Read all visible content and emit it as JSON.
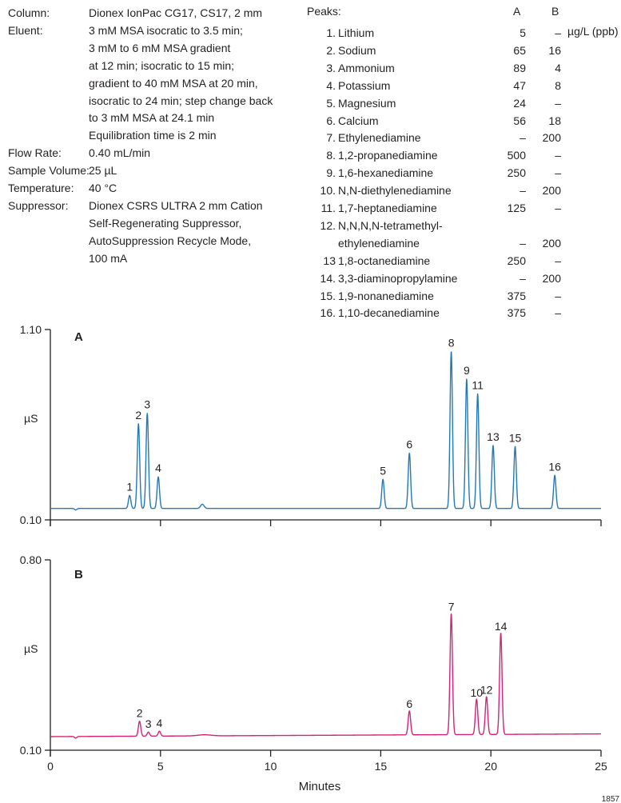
{
  "conditions": [
    {
      "label": "Column:",
      "lines": [
        "Dionex IonPac CG17, CS17, 2 mm"
      ]
    },
    {
      "label": "Eluent:",
      "lines": [
        "3 mM MSA isocratic to 3.5 min;",
        "3 mM to 6 mM MSA gradient",
        "at 12 min; isocratic to 15 min;",
        "gradient to 40 mM MSA at 20 min,",
        "isocratic to 24 min; step change back",
        "to 3 mM MSA at 24.1 min",
        "Equilibration time is 2 min"
      ]
    },
    {
      "label": "Flow Rate:",
      "lines": [
        "0.40 mL/min"
      ]
    },
    {
      "label": "Sample Volume:",
      "lines": [
        "25 µL"
      ]
    },
    {
      "label": "Temperature:",
      "lines": [
        "40 °C"
      ]
    },
    {
      "label": "Suppressor:",
      "lines": [
        "Dionex CSRS ULTRA 2 mm Cation",
        "Self-Regenerating Suppressor,",
        "AutoSuppression Recycle Mode,",
        "100 mA"
      ]
    }
  ],
  "peaks_table": {
    "heading": "Peaks:",
    "col_a": "A",
    "col_b": "B",
    "unit": "µg/L (ppb)",
    "rows": [
      {
        "num": "1.",
        "name": "Lithium",
        "a": "5",
        "b": "–"
      },
      {
        "num": "2.",
        "name": "Sodium",
        "a": "65",
        "b": "16"
      },
      {
        "num": "3.",
        "name": "Ammonium",
        "a": "89",
        "b": "4"
      },
      {
        "num": "4.",
        "name": "Potassium",
        "a": "47",
        "b": "8"
      },
      {
        "num": "5.",
        "name": "Magnesium",
        "a": "24",
        "b": "–"
      },
      {
        "num": "6.",
        "name": "Calcium",
        "a": "56",
        "b": "18"
      },
      {
        "num": "7.",
        "name": "Ethylenediamine",
        "a": "–",
        "b": "200"
      },
      {
        "num": "8.",
        "name": "1,2-propanediamine",
        "a": "500",
        "b": "–"
      },
      {
        "num": "9.",
        "name": "1,6-hexanediamine",
        "a": "250",
        "b": "–"
      },
      {
        "num": "10.",
        "name": "N,N-diethylenediamine",
        "a": "–",
        "b": "200"
      },
      {
        "num": "11.",
        "name": "1,7-heptanediamine",
        "a": "125",
        "b": "–"
      },
      {
        "num": "12.",
        "name": "N,N,N,N-tetramethyl-",
        "a": "",
        "b": ""
      },
      {
        "num": "",
        "name": "ethylenediamine",
        "a": "–",
        "b": "200"
      },
      {
        "num": "13",
        "name": "1,8-octanediamine",
        "a": "250",
        "b": "–"
      },
      {
        "num": "14.",
        "name": "3,3-diaminopropylamine",
        "a": "–",
        "b": "200"
      },
      {
        "num": "15.",
        "name": "1,9-nonanediamine",
        "a": "375",
        "b": "–"
      },
      {
        "num": "16.",
        "name": "1,10-decanediamine",
        "a": "375",
        "b": "–"
      }
    ]
  },
  "figure_id": "1857",
  "chart_data": [
    {
      "type": "line",
      "panel_label": "A",
      "ylabel": "µS",
      "ylim": [
        0.1,
        1.1
      ],
      "xlim": [
        0,
        25
      ],
      "xticks": [
        0,
        5,
        10,
        15,
        20,
        25
      ],
      "color": "#2379b5",
      "baseline": 0.16,
      "dips": [
        {
          "x": 1.15,
          "h": -0.008,
          "w": 0.05
        }
      ],
      "bumps": [
        {
          "x": 6.9,
          "h": 0.022,
          "w": 0.08
        }
      ],
      "peaks": [
        {
          "label": "1",
          "x": 3.6,
          "y": 0.228
        },
        {
          "label": "2",
          "x": 4.0,
          "y": 0.605
        },
        {
          "label": "3",
          "x": 4.4,
          "y": 0.66
        },
        {
          "label": "4",
          "x": 4.9,
          "y": 0.326
        },
        {
          "label": "5",
          "x": 15.1,
          "y": 0.313
        },
        {
          "label": "6",
          "x": 16.3,
          "y": 0.451
        },
        {
          "label": "8",
          "x": 18.2,
          "y": 0.985
        },
        {
          "label": "9",
          "x": 18.9,
          "y": 0.84
        },
        {
          "label": "11",
          "x": 19.4,
          "y": 0.762
        },
        {
          "label": "13",
          "x": 20.1,
          "y": 0.491
        },
        {
          "label": "15",
          "x": 21.1,
          "y": 0.485
        },
        {
          "label": "16",
          "x": 22.9,
          "y": 0.334
        }
      ]
    },
    {
      "type": "line",
      "panel_label": "B",
      "ylabel": "µS",
      "xlabel": "Minutes",
      "ylim": [
        0.1,
        0.8
      ],
      "xlim": [
        0,
        25
      ],
      "xticks": [
        0,
        5,
        10,
        15,
        20,
        25
      ],
      "color": "#d4237a",
      "baseline": 0.15,
      "dips": [
        {
          "x": 1.15,
          "h": -0.006,
          "w": 0.05
        }
      ],
      "bumps": [
        {
          "x": 7.0,
          "h": 0.004,
          "w": 0.3
        }
      ],
      "peaks": [
        {
          "label": "2",
          "x": 4.05,
          "y": 0.205
        },
        {
          "label": "3",
          "x": 4.45,
          "y": 0.165
        },
        {
          "label": "4",
          "x": 4.95,
          "y": 0.168
        },
        {
          "label": "6",
          "x": 16.3,
          "y": 0.238
        },
        {
          "label": "7",
          "x": 18.2,
          "y": 0.595
        },
        {
          "label": "10",
          "x": 19.35,
          "y": 0.28
        },
        {
          "label": "12",
          "x": 19.8,
          "y": 0.289
        },
        {
          "label": "14",
          "x": 20.45,
          "y": 0.523
        }
      ]
    }
  ]
}
